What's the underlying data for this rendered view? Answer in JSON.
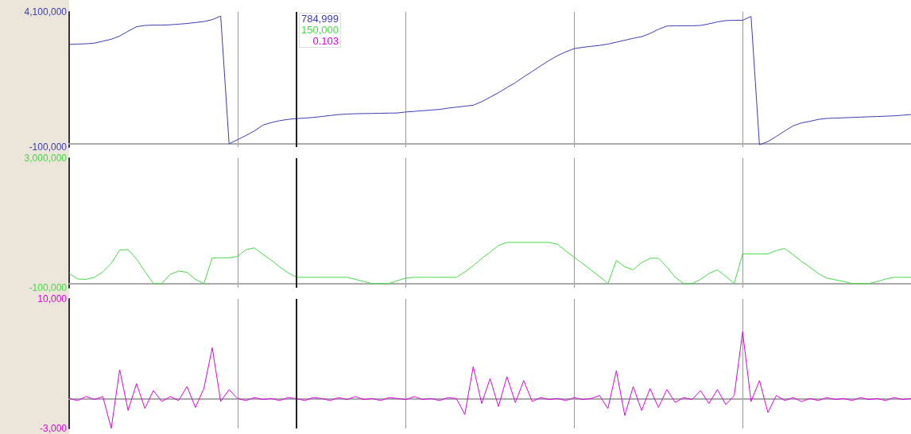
{
  "chart_data": [
    {
      "type": "line",
      "categories": [
        null,
        null,
        null,
        null,
        null,
        null,
        null,
        null,
        null,
        null,
        null,
        null,
        null,
        null,
        null,
        null,
        null,
        null,
        null,
        null,
        null,
        null,
        null,
        null,
        null,
        null,
        null,
        null,
        null,
        null,
        null,
        null,
        null,
        null,
        null,
        null,
        null,
        null,
        null,
        null,
        null,
        null,
        null,
        null,
        null,
        null,
        null,
        null,
        null,
        null,
        null,
        null,
        null,
        null,
        null,
        null,
        null,
        null,
        null,
        null,
        null,
        null,
        null,
        null,
        null,
        null,
        null,
        null,
        null,
        null,
        null,
        null,
        null,
        null,
        null,
        null,
        null,
        null,
        null,
        null,
        null,
        null,
        null,
        null,
        null,
        null,
        null,
        null,
        null,
        null,
        null,
        null,
        null,
        null,
        null,
        null,
        null,
        null,
        null,
        null,
        null
      ],
      "ylim": [
        -100000,
        4100000
      ],
      "yticks": [
        {
          "value": -100000,
          "label": "-100,000"
        },
        {
          "value": 4100000,
          "label": "4,100,000"
        }
      ],
      "grid": "x",
      "tick_labels": "y",
      "annotations": [
        "784,999"
      ],
      "series": [
        {
          "color": "#3c3cb4",
          "values": [
            3090000,
            3100000,
            3110000,
            3130000,
            3190000,
            3250000,
            3350000,
            3500000,
            3640000,
            3680000,
            3690000,
            3690000,
            3700000,
            3720000,
            3740000,
            3770000,
            3800000,
            3860000,
            3970000,
            0,
            130000,
            260000,
            400000,
            580000,
            660000,
            720000,
            760000,
            785000,
            800000,
            820000,
            850000,
            880000,
            910000,
            925000,
            935000,
            940000,
            945000,
            950000,
            955000,
            960000,
            990000,
            1010000,
            1030000,
            1050000,
            1070000,
            1110000,
            1140000,
            1170000,
            1200000,
            1310000,
            1450000,
            1590000,
            1750000,
            1900000,
            2080000,
            2250000,
            2420000,
            2590000,
            2740000,
            2860000,
            2960000,
            3000000,
            3030000,
            3060000,
            3100000,
            3160000,
            3220000,
            3280000,
            3330000,
            3430000,
            3560000,
            3660000,
            3670000,
            3670000,
            3670000,
            3680000,
            3730000,
            3790000,
            3830000,
            3840000,
            3840000,
            3960000,
            -28000,
            70000,
            230000,
            400000,
            560000,
            650000,
            700000,
            760000,
            790000,
            800000,
            810000,
            820000,
            830000,
            840000,
            850000,
            860000,
            870000,
            890000,
            910000
          ]
        }
      ]
    },
    {
      "type": "line",
      "categories": [
        null,
        null,
        null,
        null,
        null,
        null,
        null,
        null,
        null,
        null,
        null,
        null,
        null,
        null,
        null,
        null,
        null,
        null,
        null,
        null,
        null,
        null,
        null,
        null,
        null,
        null,
        null,
        null,
        null,
        null,
        null,
        null,
        null,
        null,
        null,
        null,
        null,
        null,
        null,
        null,
        null,
        null,
        null,
        null,
        null,
        null,
        null,
        null,
        null,
        null,
        null,
        null,
        null,
        null,
        null,
        null,
        null,
        null,
        null,
        null,
        null,
        null,
        null,
        null,
        null,
        null,
        null,
        null,
        null,
        null,
        null,
        null,
        null,
        null,
        null,
        null,
        null,
        null,
        null,
        null,
        null,
        null,
        null,
        null,
        null,
        null,
        null,
        null,
        null,
        null,
        null,
        null,
        null,
        null,
        null,
        null,
        null,
        null,
        null,
        null,
        null
      ],
      "ylim": [
        -100000,
        3000000
      ],
      "yticks": [
        {
          "value": -100000,
          "label": "-100,000"
        },
        {
          "value": 3000000,
          "label": "3,000,000"
        }
      ],
      "grid": "x",
      "tick_labels": "y",
      "annotations": [
        "150,000"
      ],
      "series": [
        {
          "color": "#44d944",
          "values": [
            245000,
            110000,
            100000,
            150000,
            280000,
            480000,
            800000,
            810000,
            590000,
            290000,
            0,
            0,
            220000,
            300000,
            270000,
            100000,
            0,
            615000,
            615000,
            615000,
            650000,
            810000,
            855000,
            700000,
            560000,
            400000,
            260000,
            150000,
            150000,
            150000,
            150000,
            150000,
            150000,
            150000,
            100000,
            50000,
            0,
            0,
            0,
            70000,
            130000,
            150000,
            150000,
            150000,
            150000,
            150000,
            150000,
            280000,
            430000,
            600000,
            750000,
            910000,
            985000,
            985000,
            985000,
            985000,
            985000,
            985000,
            940000,
            780000,
            630000,
            480000,
            320000,
            170000,
            0,
            555000,
            400000,
            330000,
            500000,
            606000,
            606000,
            400000,
            150000,
            0,
            0,
            100000,
            240000,
            330000,
            170000,
            0,
            710000,
            710000,
            710000,
            710000,
            790000,
            840000,
            690000,
            530000,
            390000,
            240000,
            130000,
            90000,
            50000,
            0,
            0,
            0,
            50000,
            110000,
            150000,
            150000,
            150000
          ]
        }
      ]
    },
    {
      "type": "line",
      "categories": [
        null,
        null,
        null,
        null,
        null,
        null,
        null,
        null,
        null,
        null,
        null,
        null,
        null,
        null,
        null,
        null,
        null,
        null,
        null,
        null,
        null,
        null,
        null,
        null,
        null,
        null,
        null,
        null,
        null,
        null,
        null,
        null,
        null,
        null,
        null,
        null,
        null,
        null,
        null,
        null,
        null,
        null,
        null,
        null,
        null,
        null,
        null,
        null,
        null,
        null,
        null,
        null,
        null,
        null,
        null,
        null,
        null,
        null,
        null,
        null,
        null,
        null,
        null,
        null,
        null,
        null,
        null,
        null,
        null,
        null,
        null,
        null,
        null,
        null,
        null,
        null,
        null,
        null,
        null,
        null,
        null,
        null,
        null,
        null,
        null,
        null,
        null,
        null,
        null,
        null,
        null,
        null,
        null,
        null,
        null,
        null,
        null,
        null,
        null,
        null,
        null
      ],
      "ylim": [
        -3000,
        10000
      ],
      "yticks": [
        {
          "value": -3000,
          "label": "-3,000"
        },
        {
          "value": 10000,
          "label": "10,000"
        }
      ],
      "grid": "x",
      "tick_labels": "y",
      "annotations": [
        "0.103"
      ],
      "series": [
        {
          "color": "#e000e0",
          "values": [
            0,
            -200,
            200,
            -100,
            200,
            -3000,
            2900,
            -1200,
            1500,
            -1000,
            800,
            -300,
            200,
            -200,
            1200,
            -900,
            1000,
            5100,
            -300,
            900,
            0,
            -200,
            100,
            -100,
            0,
            -200,
            100,
            0,
            -200,
            100,
            0,
            -200,
            100,
            -100,
            200,
            -100,
            0,
            -200,
            100,
            0,
            -100,
            200,
            -100,
            0,
            -200,
            100,
            0,
            -1600,
            3200,
            -500,
            2000,
            -800,
            2200,
            -400,
            1800,
            -300,
            100,
            -100,
            0,
            -200,
            100,
            -100,
            0,
            300,
            -1000,
            2800,
            -1700,
            1200,
            -1200,
            1000,
            -900,
            900,
            -400,
            100,
            -100,
            800,
            -500,
            900,
            -600,
            300,
            6700,
            -300,
            1800,
            -1400,
            300,
            -200,
            100,
            -300,
            0,
            -200,
            100,
            -100,
            0,
            -200,
            100,
            -100,
            0,
            -200,
            100,
            -100,
            0
          ]
        }
      ]
    }
  ]
}
